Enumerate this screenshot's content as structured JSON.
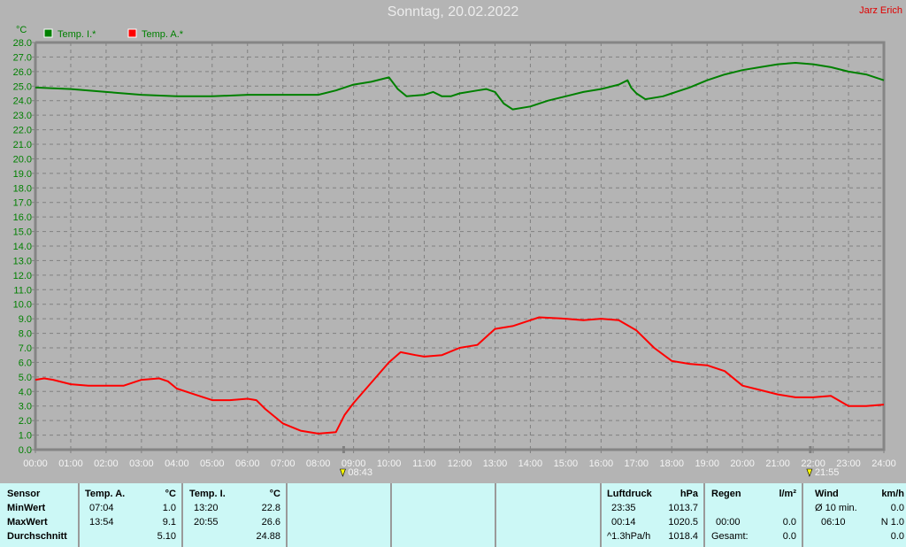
{
  "title": "Sonntag, 20.02.2022",
  "author": "Jarz Erich",
  "colors": {
    "background": "#b4b4b4",
    "grid": "#808080",
    "axis_text": "#008000",
    "temp_i": "#008000",
    "temp_a": "#ff0000",
    "panel": "#ccf8f6"
  },
  "chart_data": {
    "type": "line",
    "title": "Sonntag, 20.02.2022",
    "ylabel": "°C",
    "xlim": [
      0,
      24
    ],
    "ylim": [
      0,
      28
    ],
    "grid": true,
    "legend": "top-left",
    "x_ticks": [
      "00:00",
      "01:00",
      "02:00",
      "03:00",
      "04:00",
      "05:00",
      "06:00",
      "07:00",
      "08:00",
      "09:00",
      "10:00",
      "11:00",
      "12:00",
      "13:00",
      "14:00",
      "15:00",
      "16:00",
      "17:00",
      "18:00",
      "19:00",
      "20:00",
      "21:00",
      "22:00",
      "23:00",
      "24:00"
    ],
    "y_ticks": [
      "0.0",
      "1.0",
      "2.0",
      "3.0",
      "4.0",
      "5.0",
      "6.0",
      "7.0",
      "8.0",
      "9.0",
      "10.0",
      "11.0",
      "12.0",
      "13.0",
      "14.0",
      "15.0",
      "16.0",
      "17.0",
      "18.0",
      "19.0",
      "20.0",
      "21.0",
      "22.0",
      "23.0",
      "24.0",
      "25.0",
      "26.0",
      "27.0",
      "28.0"
    ],
    "annotations": [
      {
        "label": "08:43",
        "x": 8.72,
        "icon": "sunrise-icon"
      },
      {
        "label": "21:55",
        "x": 21.92,
        "icon": "sunset-icon"
      }
    ],
    "series": [
      {
        "name": "Temp. I.*",
        "color": "#008000",
        "x": [
          0,
          1,
          2,
          3,
          4,
          5,
          6,
          7,
          8,
          8.5,
          9,
          9.5,
          10,
          10.25,
          10.5,
          11,
          11.25,
          11.5,
          11.75,
          12,
          12.5,
          12.75,
          13,
          13.25,
          13.5,
          14,
          14.5,
          15,
          15.5,
          16,
          16.5,
          16.75,
          16.85,
          17,
          17.25,
          17.75,
          18,
          18.5,
          19,
          19.5,
          20,
          20.5,
          21,
          21.5,
          22,
          22.5,
          23,
          23.5,
          24
        ],
        "values": [
          24.9,
          24.8,
          24.6,
          24.4,
          24.3,
          24.3,
          24.4,
          24.4,
          24.4,
          24.7,
          25.1,
          25.3,
          25.6,
          24.8,
          24.3,
          24.4,
          24.6,
          24.3,
          24.3,
          24.5,
          24.7,
          24.8,
          24.6,
          23.8,
          23.4,
          23.6,
          24.0,
          24.3,
          24.6,
          24.8,
          25.1,
          25.4,
          24.9,
          24.5,
          24.1,
          24.3,
          24.5,
          24.9,
          25.4,
          25.8,
          26.1,
          26.3,
          26.5,
          26.6,
          26.5,
          26.3,
          26.0,
          25.8,
          25.4
        ]
      },
      {
        "name": "Temp. A.*",
        "color": "#ff0000",
        "x": [
          0,
          0.25,
          0.5,
          1,
          1.5,
          2,
          2.5,
          3,
          3.5,
          3.75,
          4,
          4.5,
          5,
          5.5,
          6,
          6.25,
          6.5,
          7,
          7.5,
          8,
          8.5,
          8.75,
          9,
          9.5,
          10,
          10.33,
          10.75,
          11,
          11.5,
          12,
          12.5,
          13,
          13.5,
          14,
          14.25,
          15,
          15.5,
          16,
          16.5,
          17,
          17.5,
          18,
          18.5,
          19,
          19.5,
          20,
          20.5,
          21,
          21.5,
          22,
          22.5,
          23,
          23.5,
          24
        ],
        "values": [
          4.8,
          4.9,
          4.8,
          4.5,
          4.4,
          4.4,
          4.4,
          4.8,
          4.9,
          4.7,
          4.2,
          3.8,
          3.4,
          3.4,
          3.5,
          3.4,
          2.8,
          1.8,
          1.3,
          1.1,
          1.2,
          2.4,
          3.2,
          4.6,
          6.0,
          6.7,
          6.5,
          6.4,
          6.5,
          7.0,
          7.2,
          8.3,
          8.5,
          8.9,
          9.1,
          9.0,
          8.9,
          9.0,
          8.9,
          8.2,
          7.0,
          6.1,
          5.9,
          5.8,
          5.4,
          4.4,
          4.1,
          3.8,
          3.6,
          3.6,
          3.7,
          3.0,
          3.0,
          3.1
        ]
      }
    ]
  },
  "panel": {
    "sensor": {
      "header": "Sensor",
      "rows": [
        "MinWert",
        "MaxWert",
        "Durchschnitt"
      ]
    },
    "temp_a": {
      "header": "Temp. A.",
      "unit": "°C",
      "min_time": "07:04",
      "min": "1.0",
      "max_time": "13:54",
      "max": "9.1",
      "avg": "5.10"
    },
    "temp_i": {
      "header": "Temp. I.",
      "unit": "°C",
      "min_time": "13:20",
      "min": "22.8",
      "max_time": "20:55",
      "max": "26.6",
      "avg": "24.88"
    },
    "luftdruck": {
      "header": "Luftdruck",
      "unit": "hPa",
      "min_time": "23:35",
      "min": "1013.7",
      "max_time": "00:14",
      "max": "1020.5",
      "trend": "^1.3hPa/h",
      "current": "1018.4"
    },
    "regen": {
      "header": "Regen",
      "unit": "l/m²",
      "time": "00:00",
      "value": "0.0",
      "total_label": "Gesamt:",
      "total": "0.0"
    },
    "wind": {
      "header": "Wind",
      "unit": "km/h",
      "avg_label": "Ø 10 min.",
      "avg": "0.0",
      "max_time": "06:10",
      "max": "N 1.0",
      "value": "0.0"
    }
  }
}
